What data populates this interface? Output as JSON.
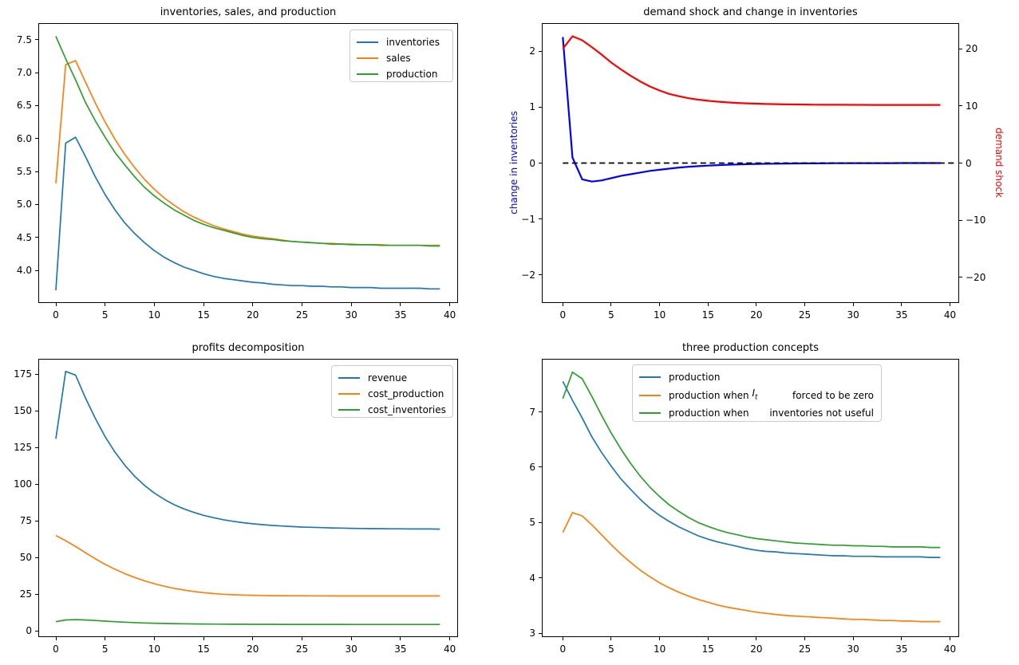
{
  "figure": {
    "background": "#ffffff"
  },
  "chart_data": [
    {
      "id": "inventories-sales-production",
      "type": "line",
      "title": "inventories, sales, and production",
      "x_start": 0,
      "x_step": 1,
      "n_points": 40,
      "xlim": [
        -1.8,
        41.0
      ],
      "ylim": [
        3.51,
        7.75
      ],
      "grid": false,
      "xticks": [
        0,
        5,
        10,
        15,
        20,
        25,
        30,
        35,
        40
      ],
      "xtick_labels": [
        "0",
        "5",
        "10",
        "15",
        "20",
        "25",
        "30",
        "35",
        "40"
      ],
      "yticks": [
        4.0,
        4.5,
        5.0,
        5.5,
        6.0,
        6.5,
        7.0,
        7.5
      ],
      "ytick_labels": [
        "4.0",
        "4.5",
        "5.0",
        "5.5",
        "6.0",
        "6.5",
        "7.0",
        "7.5"
      ],
      "legend": {
        "position": "upper right",
        "entries": [
          {
            "label": "inventories",
            "color": "#1f77b4"
          },
          {
            "label": "sales",
            "color": "#ff7f0e"
          },
          {
            "label": "production",
            "color": "#2ca02c"
          }
        ]
      },
      "series": [
        {
          "name": "inventories",
          "color": "#1f77b4",
          "lw": 1.7,
          "values": [
            3.7,
            5.93,
            6.02,
            5.73,
            5.42,
            5.15,
            4.92,
            4.72,
            4.56,
            4.42,
            4.3,
            4.2,
            4.12,
            4.05,
            4.0,
            3.95,
            3.91,
            3.88,
            3.86,
            3.84,
            3.82,
            3.81,
            3.79,
            3.78,
            3.77,
            3.77,
            3.76,
            3.76,
            3.75,
            3.75,
            3.74,
            3.74,
            3.74,
            3.73,
            3.73,
            3.73,
            3.73,
            3.73,
            3.72,
            3.72
          ]
        },
        {
          "name": "sales",
          "color": "#ff7f0e",
          "lw": 1.7,
          "values": [
            5.32,
            7.12,
            7.18,
            6.86,
            6.54,
            6.25,
            5.99,
            5.76,
            5.56,
            5.38,
            5.23,
            5.1,
            4.99,
            4.89,
            4.81,
            4.74,
            4.68,
            4.63,
            4.59,
            4.55,
            4.52,
            4.5,
            4.48,
            4.46,
            4.44,
            4.43,
            4.42,
            4.41,
            4.41,
            4.4,
            4.4,
            4.39,
            4.39,
            4.39,
            4.38,
            4.38,
            4.38,
            4.38,
            4.38,
            4.38
          ]
        },
        {
          "name": "production",
          "color": "#2ca02c",
          "lw": 1.7,
          "values": [
            7.55,
            7.21,
            6.89,
            6.55,
            6.27,
            6.02,
            5.79,
            5.6,
            5.42,
            5.26,
            5.13,
            5.02,
            4.92,
            4.84,
            4.76,
            4.7,
            4.65,
            4.61,
            4.57,
            4.53,
            4.5,
            4.48,
            4.47,
            4.45,
            4.44,
            4.43,
            4.42,
            4.41,
            4.4,
            4.4,
            4.39,
            4.39,
            4.39,
            4.38,
            4.38,
            4.38,
            4.38,
            4.38,
            4.37,
            4.37
          ]
        }
      ]
    },
    {
      "id": "demand-shock-change-in-inventories",
      "type": "line",
      "title": "demand shock and change in inventories",
      "x_start": 0,
      "x_step": 1,
      "n_points": 40,
      "xlim": [
        -2.2,
        41.0
      ],
      "ylim_left": [
        -2.5,
        2.5
      ],
      "ylim_right": [
        -24.5,
        24.5
      ],
      "grid": false,
      "xticks": [
        0,
        5,
        10,
        15,
        20,
        25,
        30,
        35,
        40
      ],
      "xtick_labels": [
        "0",
        "5",
        "10",
        "15",
        "20",
        "25",
        "30",
        "35",
        "40"
      ],
      "yticks_left": [
        -2,
        -1,
        0,
        1,
        2
      ],
      "ytick_labels_left": [
        "−2",
        "−1",
        "0",
        "1",
        "2"
      ],
      "yticks_right": [
        -20,
        -10,
        0,
        10,
        20
      ],
      "ytick_labels_right": [
        "−20",
        "−10",
        "0",
        "10",
        "20"
      ],
      "ylabel_left": {
        "text": "change in inventories",
        "color": "#0000ff"
      },
      "ylabel_right": {
        "text": "demand shock",
        "color": "#ff0000"
      },
      "series": [
        {
          "name": "change in inventories",
          "color": "#0000ff",
          "lw": 2.2,
          "axis": "left",
          "values": [
            2.25,
            0.1,
            -0.29,
            -0.33,
            -0.31,
            -0.27,
            -0.23,
            -0.2,
            -0.17,
            -0.14,
            -0.12,
            -0.1,
            -0.08,
            -0.065,
            -0.055,
            -0.045,
            -0.037,
            -0.03,
            -0.025,
            -0.02,
            -0.016,
            -0.013,
            -0.011,
            -0.009,
            -0.007,
            -0.006,
            -0.005,
            -0.004,
            -0.003,
            -0.003,
            -0.002,
            -0.002,
            -0.001,
            -0.001,
            -0.001,
            0,
            0,
            0,
            0,
            0
          ]
        },
        {
          "name": "demand shock",
          "color": "#ff0000",
          "lw": 2.2,
          "axis": "right",
          "values": [
            20.0,
            22.2,
            21.5,
            20.3,
            19.0,
            17.6,
            16.4,
            15.3,
            14.3,
            13.4,
            12.7,
            12.1,
            11.7,
            11.35,
            11.1,
            10.9,
            10.75,
            10.63,
            10.53,
            10.45,
            10.4,
            10.35,
            10.31,
            10.28,
            10.26,
            10.24,
            10.22,
            10.21,
            10.2,
            10.2,
            10.19,
            10.19,
            10.18,
            10.18,
            10.18,
            10.17,
            10.17,
            10.17,
            10.17,
            10.17
          ]
        },
        {
          "name": "zero line",
          "color": "#000000",
          "lw": 1.7,
          "axis": "left",
          "style": "dashed",
          "x": [
            0,
            40.4
          ],
          "values": [
            0,
            0
          ]
        }
      ]
    },
    {
      "id": "profits-decomposition",
      "type": "line",
      "title": "profits decomposition",
      "x_start": 0,
      "x_step": 1,
      "n_points": 40,
      "xlim": [
        -1.8,
        41.0
      ],
      "ylim": [
        -4.3,
        185.6
      ],
      "grid": false,
      "xticks": [
        0,
        5,
        10,
        15,
        20,
        25,
        30,
        35,
        40
      ],
      "xtick_labels": [
        "0",
        "5",
        "10",
        "15",
        "20",
        "25",
        "30",
        "35",
        "40"
      ],
      "yticks": [
        0,
        25,
        50,
        75,
        100,
        125,
        150,
        175
      ],
      "ytick_labels": [
        "0",
        "25",
        "50",
        "75",
        "100",
        "125",
        "150",
        "175"
      ],
      "legend": {
        "position": "upper right",
        "entries": [
          {
            "label": "revenue",
            "color": "#1f77b4"
          },
          {
            "label": "cost_production",
            "color": "#ff7f0e"
          },
          {
            "label": "cost_inventories",
            "color": "#2ca02c"
          }
        ]
      },
      "series": [
        {
          "name": "revenue",
          "color": "#1f77b4",
          "lw": 1.7,
          "values": [
            131,
            177,
            174.5,
            159,
            145,
            132.5,
            122,
            113,
            105.5,
            99.2,
            94,
            89.7,
            86.1,
            83.2,
            80.8,
            78.8,
            77.2,
            75.8,
            74.7,
            73.8,
            73,
            72.4,
            71.9,
            71.5,
            71.1,
            70.8,
            70.6,
            70.4,
            70.2,
            70.1,
            69.9,
            69.8,
            69.7,
            69.7,
            69.6,
            69.6,
            69.5,
            69.5,
            69.5,
            69.4
          ]
        },
        {
          "name": "cost_production",
          "color": "#ff7f0e",
          "lw": 1.7,
          "values": [
            65,
            61.5,
            57.5,
            53.3,
            49.2,
            45.4,
            42,
            39,
            36.4,
            34.1,
            32.1,
            30.4,
            29,
            27.8,
            26.8,
            26,
            25.4,
            24.9,
            24.6,
            24.4,
            24.2,
            24.1,
            24,
            23.95,
            23.9,
            23.9,
            23.85,
            23.85,
            23.8,
            23.8,
            23.8,
            23.8,
            23.8,
            23.8,
            23.8,
            23.8,
            23.8,
            23.8,
            23.8,
            23.8
          ]
        },
        {
          "name": "cost_inventories",
          "color": "#2ca02c",
          "lw": 1.7,
          "values": [
            6.2,
            7.4,
            7.6,
            7.4,
            7.0,
            6.6,
            6.2,
            5.9,
            5.6,
            5.35,
            5.15,
            5.0,
            4.87,
            4.76,
            4.67,
            4.6,
            4.55,
            4.5,
            4.47,
            4.44,
            4.42,
            4.4,
            4.38,
            4.37,
            4.36,
            4.35,
            4.34,
            4.34,
            4.33,
            4.33,
            4.32,
            4.32,
            4.32,
            4.31,
            4.31,
            4.31,
            4.31,
            4.3,
            4.3,
            4.3
          ]
        }
      ]
    },
    {
      "id": "three-production-concepts",
      "type": "line",
      "title": "three production concepts",
      "x_start": 0,
      "x_step": 1,
      "n_points": 40,
      "xlim": [
        -2.2,
        41.0
      ],
      "ylim": [
        2.93,
        7.96
      ],
      "grid": false,
      "xticks": [
        0,
        5,
        10,
        15,
        20,
        25,
        30,
        35,
        40
      ],
      "xtick_labels": [
        "0",
        "5",
        "10",
        "15",
        "20",
        "25",
        "30",
        "35",
        "40"
      ],
      "yticks": [
        3,
        4,
        5,
        6,
        7
      ],
      "ytick_labels": [
        "3",
        "4",
        "5",
        "6",
        "7"
      ],
      "legend": {
        "position": "upper left",
        "entries": [
          {
            "label": "production",
            "color": "#1f77b4"
          },
          {
            "label": "production when ",
            "math_It": true,
            "label_right": "forced to be zero",
            "color": "#ff7f0e"
          },
          {
            "label": "production when",
            "label_right": "inventories not useful",
            "color": "#2ca02c"
          }
        ]
      },
      "series": [
        {
          "name": "production",
          "color": "#1f77b4",
          "lw": 1.7,
          "values": [
            7.55,
            7.21,
            6.89,
            6.55,
            6.27,
            6.02,
            5.79,
            5.6,
            5.42,
            5.26,
            5.13,
            5.02,
            4.92,
            4.84,
            4.76,
            4.7,
            4.65,
            4.61,
            4.57,
            4.53,
            4.5,
            4.48,
            4.47,
            4.45,
            4.44,
            4.43,
            4.42,
            4.41,
            4.4,
            4.4,
            4.39,
            4.39,
            4.39,
            4.38,
            4.38,
            4.38,
            4.38,
            4.38,
            4.37,
            4.37
          ]
        },
        {
          "name": "production when I_t forced to be zero",
          "color": "#ff7f0e",
          "lw": 1.7,
          "values": [
            4.82,
            5.18,
            5.12,
            4.96,
            4.78,
            4.6,
            4.43,
            4.28,
            4.14,
            4.02,
            3.91,
            3.82,
            3.74,
            3.67,
            3.61,
            3.56,
            3.51,
            3.47,
            3.44,
            3.41,
            3.38,
            3.36,
            3.34,
            3.32,
            3.31,
            3.3,
            3.29,
            3.28,
            3.27,
            3.26,
            3.25,
            3.25,
            3.24,
            3.23,
            3.23,
            3.22,
            3.22,
            3.21,
            3.21,
            3.21
          ]
        },
        {
          "name": "production when inventories not useful",
          "color": "#2ca02c",
          "lw": 1.7,
          "values": [
            7.24,
            7.72,
            7.6,
            7.28,
            6.94,
            6.62,
            6.33,
            6.07,
            5.84,
            5.64,
            5.47,
            5.32,
            5.2,
            5.09,
            5.0,
            4.93,
            4.87,
            4.82,
            4.78,
            4.74,
            4.71,
            4.69,
            4.67,
            4.65,
            4.63,
            4.62,
            4.61,
            4.6,
            4.59,
            4.59,
            4.58,
            4.58,
            4.57,
            4.57,
            4.56,
            4.56,
            4.56,
            4.56,
            4.55,
            4.55
          ]
        }
      ]
    }
  ]
}
